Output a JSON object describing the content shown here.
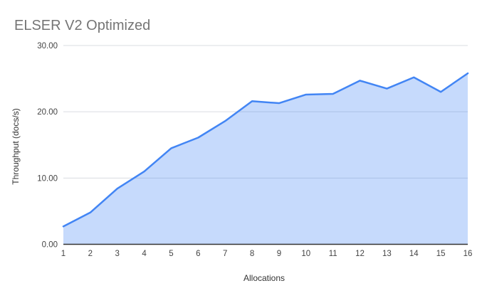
{
  "chart_data": {
    "type": "area",
    "title": "ELSER V2 Optimized",
    "xlabel": "Allocations",
    "ylabel": "Throughput (docs/s)",
    "x": [
      1,
      2,
      3,
      4,
      5,
      6,
      7,
      8,
      9,
      10,
      11,
      12,
      13,
      14,
      15,
      16
    ],
    "x_tick_labels": [
      "1",
      "2",
      "3",
      "4",
      "5",
      "6",
      "7",
      "8",
      "9",
      "10",
      "11",
      "12",
      "13",
      "14",
      "15",
      "16"
    ],
    "series": [
      {
        "name": "ELSER V2 Optimized",
        "values": [
          2.7,
          4.8,
          8.4,
          11.0,
          14.5,
          16.1,
          18.6,
          21.6,
          21.3,
          22.6,
          22.7,
          24.7,
          23.5,
          25.2,
          23.0,
          25.8
        ]
      }
    ],
    "ylim": [
      0,
      30
    ],
    "y_ticks": [
      0,
      10,
      20,
      30
    ],
    "y_tick_labels": [
      "0.00",
      "10.00",
      "20.00",
      "30.00"
    ],
    "grid": "horizontal",
    "legend": "none",
    "colors": {
      "line": "#4285f4",
      "area_fill": "#c7dbfc",
      "grid": "#dadce0",
      "axis": "#333333",
      "title_text": "#757575",
      "tick_text": "#444444",
      "axis_title_text": "#333333",
      "background": "#ffffff"
    }
  }
}
